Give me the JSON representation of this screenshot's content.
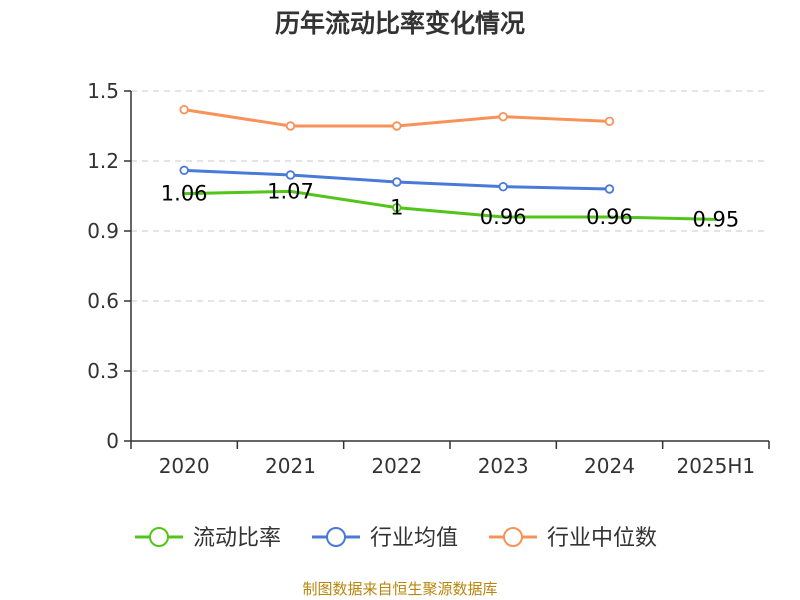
{
  "chart_data": {
    "type": "line",
    "title": "历年流动比率变化情况",
    "categories": [
      "2020",
      "2021",
      "2022",
      "2023",
      "2024",
      "2025H1"
    ],
    "yticks": [
      "0",
      "0.3",
      "0.6",
      "0.9",
      "1.2",
      "1.5"
    ],
    "ylim": [
      0,
      1.5
    ],
    "grid": true,
    "legend_position": "bottom",
    "series": [
      {
        "name": "流动比率",
        "color": "#52c41a",
        "values": [
          1.06,
          1.07,
          1.0,
          0.96,
          0.96,
          0.95
        ],
        "labels": [
          "1.06",
          "1.07",
          "1",
          "0.96",
          "0.96",
          "0.95"
        ]
      },
      {
        "name": "行业均值",
        "color": "#4a7ad8",
        "values": [
          1.16,
          1.14,
          1.11,
          1.09,
          1.08,
          null
        ]
      },
      {
        "name": "行业中位数",
        "color": "#f79358",
        "values": [
          1.42,
          1.35,
          1.35,
          1.39,
          1.37,
          null
        ]
      }
    ]
  },
  "source": "制图数据来自恒生聚源数据库"
}
